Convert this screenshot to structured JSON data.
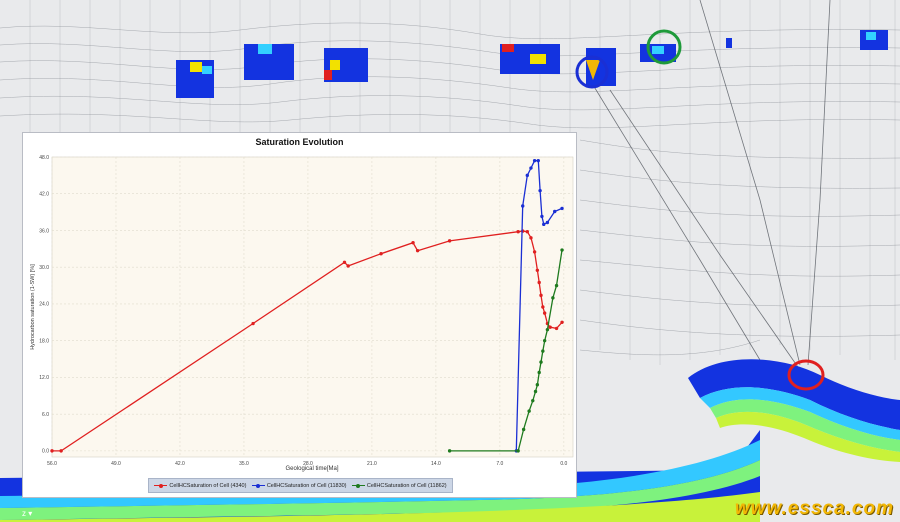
{
  "chart_data": {
    "type": "line",
    "title": "Saturation Evolution",
    "xlabel": "Geological time[Ma]",
    "ylabel": "Hydrocarbon saturation (1-SW) [%]",
    "xlim": [
      56.0,
      -1.0
    ],
    "ylim": [
      -1.0,
      48.0
    ],
    "x_ticks": [
      "56.0",
      "49.0",
      "42.0",
      "35.0",
      "28.0",
      "21.0",
      "14.0",
      "7.0",
      "0.0"
    ],
    "x_tick_values": [
      56,
      49,
      42,
      35,
      28,
      21,
      14,
      7,
      0
    ],
    "y_ticks": [
      "0.0",
      "6.0",
      "12.0",
      "18.0",
      "24.0",
      "30.0",
      "36.0",
      "42.0",
      "48.0"
    ],
    "y_tick_values": [
      0,
      6,
      12,
      18,
      24,
      30,
      36,
      42,
      48
    ],
    "grid": true,
    "legend_position": "bottom",
    "series": [
      {
        "name": "CellHCSaturation of Cell (4340)",
        "color": "#e02020",
        "points": [
          [
            56,
            0
          ],
          [
            55,
            0
          ],
          [
            34,
            20.8
          ],
          [
            24,
            30.8
          ],
          [
            23.6,
            30.2
          ],
          [
            20,
            32.2
          ],
          [
            16.5,
            34
          ],
          [
            16,
            32.7
          ],
          [
            12.5,
            34.3
          ],
          [
            5,
            35.8
          ],
          [
            4.5,
            35.9
          ],
          [
            4,
            35.8
          ],
          [
            3.6,
            34.8
          ],
          [
            3.2,
            32.5
          ],
          [
            2.9,
            29.5
          ],
          [
            2.7,
            27.5
          ],
          [
            2.5,
            25.4
          ],
          [
            2.3,
            23.5
          ],
          [
            2.1,
            22.5
          ],
          [
            1.8,
            20.8
          ],
          [
            1.5,
            20.2
          ],
          [
            0.8,
            20
          ],
          [
            0.2,
            21
          ]
        ]
      },
      {
        "name": "CellHCSaturation of Cell (11830)",
        "color": "#1a2fd4",
        "points": [
          [
            5.2,
            0
          ],
          [
            4.5,
            40
          ],
          [
            4,
            45
          ],
          [
            3.6,
            46.2
          ],
          [
            3.2,
            47.4
          ],
          [
            2.8,
            47.4
          ],
          [
            2.6,
            42.5
          ],
          [
            2.4,
            38.3
          ],
          [
            2.2,
            37
          ],
          [
            1.8,
            37.3
          ],
          [
            1,
            39.1
          ],
          [
            0.2,
            39.6
          ]
        ]
      },
      {
        "name": "CellHCSaturation of Cell (11862)",
        "color": "#1e7a1e",
        "points": [
          [
            12.5,
            0
          ],
          [
            5,
            0
          ],
          [
            4.4,
            3.5
          ],
          [
            3.8,
            6.5
          ],
          [
            3.4,
            8.2
          ],
          [
            3.1,
            9.7
          ],
          [
            2.9,
            10.8
          ],
          [
            2.7,
            12.8
          ],
          [
            2.5,
            14.5
          ],
          [
            2.3,
            16.3
          ],
          [
            2.1,
            18
          ],
          [
            1.8,
            19.8
          ],
          [
            1.2,
            25
          ],
          [
            0.8,
            27
          ],
          [
            0.2,
            32.8
          ]
        ]
      }
    ]
  },
  "watermark": "www.essca.com",
  "corner_mark": "z ▾"
}
